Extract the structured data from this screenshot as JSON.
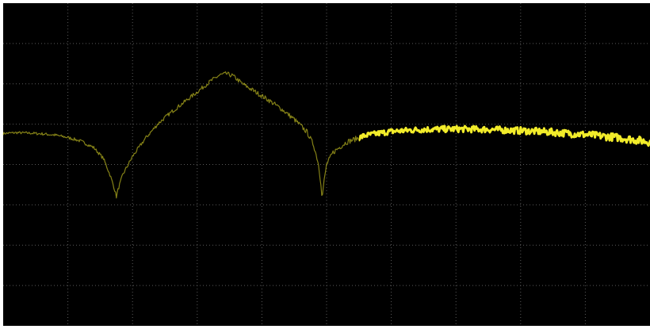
{
  "chart_data": {
    "type": "line",
    "title": "",
    "xlabel": "",
    "ylabel": "",
    "grid": true,
    "grid_divisions": {
      "x": 10,
      "y": 8
    },
    "xlim": [
      0,
      10
    ],
    "ylim": [
      0,
      8
    ],
    "background_color": "#000000",
    "grid_color": "#5a5a5a",
    "series": [
      {
        "color": "#f2ec2a",
        "points": [
          [
            0.0,
            4.77
          ],
          [
            0.2,
            4.79
          ],
          [
            0.4,
            4.78
          ],
          [
            0.6,
            4.76
          ],
          [
            0.8,
            4.73
          ],
          [
            1.0,
            4.67
          ],
          [
            1.2,
            4.58
          ],
          [
            1.4,
            4.42
          ],
          [
            1.55,
            4.15
          ],
          [
            1.65,
            3.75
          ],
          [
            1.72,
            3.4
          ],
          [
            1.75,
            3.2
          ],
          [
            1.78,
            3.4
          ],
          [
            1.85,
            3.75
          ],
          [
            2.0,
            4.2
          ],
          [
            2.2,
            4.65
          ],
          [
            2.4,
            5.02
          ],
          [
            2.6,
            5.3
          ],
          [
            2.8,
            5.55
          ],
          [
            3.0,
            5.8
          ],
          [
            3.2,
            6.06
          ],
          [
            3.35,
            6.22
          ],
          [
            3.45,
            6.25
          ],
          [
            3.55,
            6.2
          ],
          [
            3.7,
            6.0
          ],
          [
            3.9,
            5.8
          ],
          [
            4.1,
            5.6
          ],
          [
            4.3,
            5.38
          ],
          [
            4.5,
            5.12
          ],
          [
            4.7,
            4.8
          ],
          [
            4.8,
            4.48
          ],
          [
            4.87,
            4.05
          ],
          [
            4.92,
            3.45
          ],
          [
            4.93,
            3.12
          ],
          [
            4.95,
            3.45
          ],
          [
            5.0,
            4.0
          ],
          [
            5.1,
            4.3
          ],
          [
            5.3,
            4.55
          ],
          [
            5.6,
            4.72
          ],
          [
            6.0,
            4.82
          ],
          [
            6.5,
            4.87
          ],
          [
            7.0,
            4.88
          ],
          [
            7.5,
            4.87
          ],
          [
            8.0,
            4.84
          ],
          [
            8.5,
            4.8
          ],
          [
            9.0,
            4.74
          ],
          [
            9.5,
            4.67
          ],
          [
            10.0,
            4.56
          ]
        ]
      }
    ]
  }
}
